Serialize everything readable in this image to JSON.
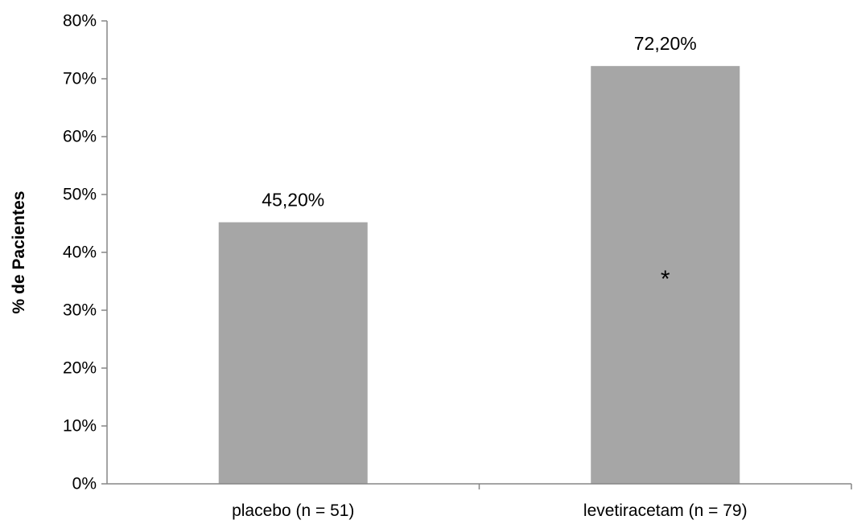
{
  "chart_data": {
    "type": "bar",
    "categories": [
      "placebo (n = 51)",
      "levetiracetam (n = 79)"
    ],
    "values": [
      45.2,
      72.2
    ],
    "data_labels": [
      "45,20%",
      "72,20%"
    ],
    "ylabel": "% de Pacientes",
    "ylim": [
      0,
      80
    ],
    "yticks": [
      0,
      10,
      20,
      30,
      40,
      50,
      60,
      70,
      80
    ],
    "ytick_labels": [
      "0%",
      "10%",
      "20%",
      "30%",
      "40%",
      "50%",
      "60%",
      "70%",
      "80%"
    ],
    "bar_color": "#a6a6a6",
    "grid": false,
    "annotations": [
      {
        "category_index": 1,
        "text": "*"
      }
    ]
  }
}
